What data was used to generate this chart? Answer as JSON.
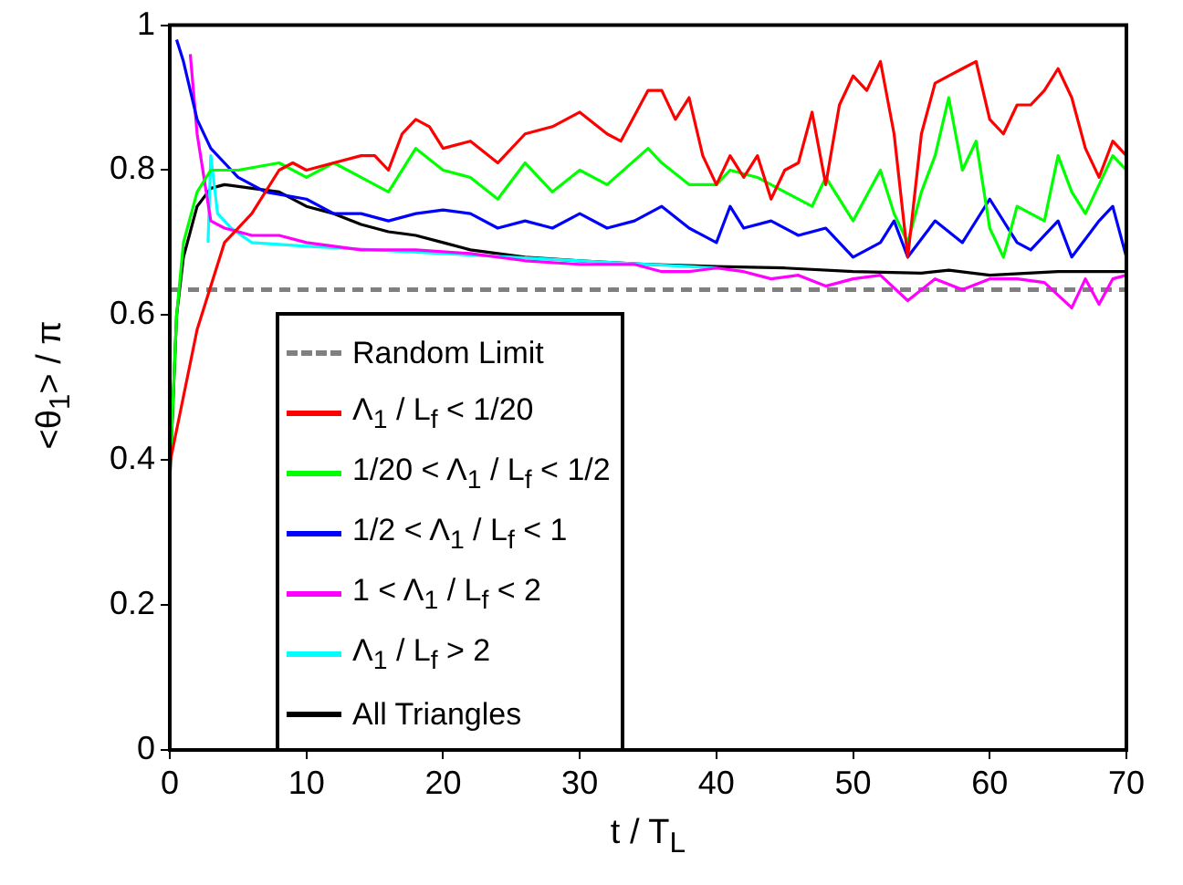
{
  "chart_data": {
    "type": "line",
    "xlabel": "t / T$_{L}$",
    "ylabel": "<θ$_{1}$> / π",
    "xlim": [
      0,
      70
    ],
    "xticks": [
      0,
      10,
      20,
      30,
      40,
      50,
      60,
      70
    ],
    "ylim": [
      0,
      1
    ],
    "yticks": [
      0,
      0.2,
      0.4,
      0.6,
      0.8,
      1
    ],
    "grid": false,
    "legend": "bottom left",
    "marker": "none",
    "line_style": "solid",
    "ref_lines": [
      {
        "axis": "y",
        "value": 0.635,
        "label": "Random Limit",
        "color": "#808080",
        "line_style": "dashed"
      }
    ],
    "series": [
      {
        "name": "Λ$_{1}$ / L$_{f}$ < 1/20",
        "color": "#ff0000",
        "x": [
          0.05,
          2,
          4,
          6,
          8,
          9,
          10,
          12,
          14,
          15,
          16,
          17,
          18,
          19,
          20,
          22,
          24,
          26,
          28,
          30,
          32,
          33,
          35,
          36,
          37,
          38,
          39,
          40,
          41,
          42,
          43,
          44,
          45,
          46,
          47,
          48,
          49,
          50,
          51,
          52,
          53,
          54,
          55,
          56,
          57,
          58,
          59,
          60,
          61,
          62,
          63,
          64,
          65,
          66,
          67,
          68,
          69,
          70
        ],
        "values": [
          0.4,
          0.58,
          0.7,
          0.74,
          0.8,
          0.81,
          0.8,
          0.81,
          0.82,
          0.82,
          0.8,
          0.85,
          0.87,
          0.86,
          0.83,
          0.84,
          0.81,
          0.85,
          0.86,
          0.88,
          0.85,
          0.84,
          0.91,
          0.91,
          0.87,
          0.9,
          0.82,
          0.78,
          0.82,
          0.79,
          0.82,
          0.76,
          0.8,
          0.81,
          0.88,
          0.78,
          0.89,
          0.93,
          0.91,
          0.95,
          0.85,
          0.68,
          0.85,
          0.92,
          0.93,
          0.94,
          0.95,
          0.87,
          0.85,
          0.89,
          0.89,
          0.91,
          0.94,
          0.9,
          0.83,
          0.79,
          0.84,
          0.82
        ]
      },
      {
        "name": "1/20 < Λ$_{1}$ / L$_{f}$ < 1/2",
        "color": "#00ff00",
        "x": [
          0.05,
          0.5,
          1,
          2,
          3,
          5,
          8,
          10,
          12,
          14,
          16,
          18,
          20,
          22,
          24,
          26,
          28,
          30,
          32,
          35,
          36,
          38,
          40,
          41,
          43,
          45,
          47,
          48,
          50,
          52,
          53,
          54,
          55,
          56,
          57,
          58,
          59,
          60,
          61,
          62,
          64,
          65,
          66,
          67,
          68,
          69,
          70
        ],
        "values": [
          0.4,
          0.6,
          0.7,
          0.77,
          0.8,
          0.8,
          0.81,
          0.79,
          0.81,
          0.79,
          0.77,
          0.83,
          0.8,
          0.79,
          0.76,
          0.81,
          0.77,
          0.8,
          0.78,
          0.83,
          0.81,
          0.78,
          0.78,
          0.8,
          0.79,
          0.77,
          0.75,
          0.79,
          0.73,
          0.8,
          0.74,
          0.7,
          0.77,
          0.82,
          0.9,
          0.8,
          0.84,
          0.72,
          0.68,
          0.75,
          0.73,
          0.82,
          0.77,
          0.74,
          0.78,
          0.82,
          0.8
        ]
      },
      {
        "name": "1/2 < Λ$_{1}$ / L$_{f}$ < 1",
        "color": "#0000ff",
        "x": [
          0.5,
          1,
          2,
          3,
          5,
          7,
          10,
          12,
          14,
          16,
          18,
          20,
          22,
          24,
          26,
          28,
          30,
          32,
          34,
          36,
          38,
          40,
          41,
          42,
          44,
          46,
          48,
          50,
          52,
          53,
          54,
          56,
          58,
          60,
          62,
          63,
          65,
          66,
          68,
          69,
          70
        ],
        "values": [
          0.98,
          0.95,
          0.87,
          0.83,
          0.79,
          0.77,
          0.76,
          0.74,
          0.74,
          0.73,
          0.74,
          0.745,
          0.74,
          0.72,
          0.73,
          0.72,
          0.74,
          0.72,
          0.73,
          0.75,
          0.72,
          0.7,
          0.75,
          0.72,
          0.73,
          0.71,
          0.72,
          0.68,
          0.7,
          0.73,
          0.68,
          0.73,
          0.7,
          0.76,
          0.7,
          0.69,
          0.73,
          0.68,
          0.73,
          0.75,
          0.68
        ]
      },
      {
        "name": "1 < Λ$_{1}$ / L$_{f}$ < 2",
        "color": "#ff00ff",
        "x": [
          1.5,
          2,
          3,
          4,
          6,
          8,
          10,
          14,
          18,
          22,
          26,
          30,
          34,
          36,
          38,
          40,
          42,
          44,
          46,
          48,
          50,
          52,
          54,
          56,
          58,
          60,
          62,
          64,
          66,
          67,
          68,
          69,
          70
        ],
        "values": [
          0.96,
          0.85,
          0.73,
          0.72,
          0.71,
          0.71,
          0.7,
          0.69,
          0.69,
          0.685,
          0.675,
          0.67,
          0.67,
          0.66,
          0.66,
          0.665,
          0.66,
          0.65,
          0.655,
          0.64,
          0.65,
          0.655,
          0.62,
          0.65,
          0.635,
          0.65,
          0.65,
          0.645,
          0.61,
          0.65,
          0.615,
          0.65,
          0.655
        ]
      },
      {
        "name": "Λ$_{1}$ / L$_{f}$ > 2",
        "color": "#00ffff",
        "x": [
          2.8,
          3,
          3.5,
          4.5,
          6,
          10,
          15,
          20,
          25,
          30,
          35,
          40
        ],
        "values": [
          0.7,
          0.82,
          0.74,
          0.72,
          0.7,
          0.695,
          0.69,
          0.685,
          0.68,
          0.675,
          0.67,
          0.665
        ]
      },
      {
        "name": "All Triangles",
        "color": "#000000",
        "x": [
          0,
          0.5,
          1,
          2,
          3,
          4,
          6,
          8,
          10,
          12,
          14,
          16,
          18,
          20,
          22,
          24,
          26,
          30,
          35,
          40,
          45,
          50,
          55,
          57,
          60,
          65,
          70
        ],
        "values": [
          0.37,
          0.6,
          0.68,
          0.75,
          0.775,
          0.78,
          0.775,
          0.77,
          0.75,
          0.74,
          0.725,
          0.715,
          0.71,
          0.7,
          0.69,
          0.685,
          0.68,
          0.675,
          0.67,
          0.667,
          0.665,
          0.66,
          0.658,
          0.662,
          0.655,
          0.66,
          0.66
        ]
      }
    ]
  }
}
